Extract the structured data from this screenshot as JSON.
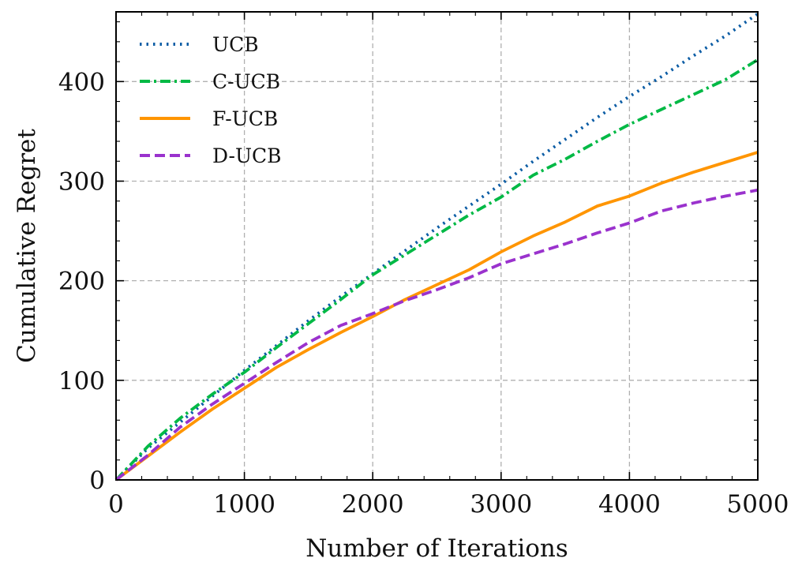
{
  "chart_data": {
    "type": "line",
    "title": "",
    "xlabel": "Number of Iterations",
    "ylabel": "Cumulative Regret",
    "xlim": [
      0,
      5000
    ],
    "ylim": [
      0,
      470
    ],
    "grid": true,
    "legend_position": "top-left",
    "x_ticks": [
      0,
      1000,
      2000,
      3000,
      4000,
      5000
    ],
    "x_tick_labels": [
      "0",
      "1000",
      "2000",
      "3000",
      "4000",
      "5000"
    ],
    "y_ticks": [
      0,
      100,
      200,
      300,
      400
    ],
    "y_tick_labels": [
      "0",
      "100",
      "200",
      "300",
      "400"
    ],
    "x": [
      0,
      250,
      500,
      750,
      1000,
      1250,
      1500,
      1750,
      2000,
      2250,
      2500,
      2750,
      3000,
      3250,
      3500,
      3750,
      4000,
      4250,
      4500,
      4750,
      5000
    ],
    "series": [
      {
        "name": "UCB",
        "color": "#0c5da5",
        "style": "dotted",
        "values": [
          0,
          32,
          58,
          84,
          110,
          135,
          160,
          184,
          207,
          230,
          253,
          275,
          297,
          320,
          342,
          364,
          385,
          405,
          426,
          446,
          468
        ]
      },
      {
        "name": "C-UCB",
        "color": "#00b945",
        "style": "dashdot",
        "values": [
          0,
          34,
          62,
          86,
          108,
          133,
          157,
          181,
          206,
          226,
          246,
          266,
          284,
          306,
          322,
          340,
          357,
          372,
          387,
          402,
          422
        ]
      },
      {
        "name": "F-UCB",
        "color": "#ff9500",
        "style": "solid",
        "values": [
          0,
          24,
          48,
          71,
          92,
          113,
          131,
          148,
          164,
          181,
          196,
          211,
          229,
          245,
          259,
          275,
          285,
          298,
          309,
          319,
          329
        ]
      },
      {
        "name": "D-UCB",
        "color": "#9a32cd",
        "style": "dashed",
        "values": [
          0,
          25,
          53,
          76,
          97,
          118,
          138,
          155,
          167,
          180,
          191,
          203,
          217,
          227,
          237,
          248,
          258,
          270,
          278,
          285,
          291
        ]
      }
    ]
  }
}
